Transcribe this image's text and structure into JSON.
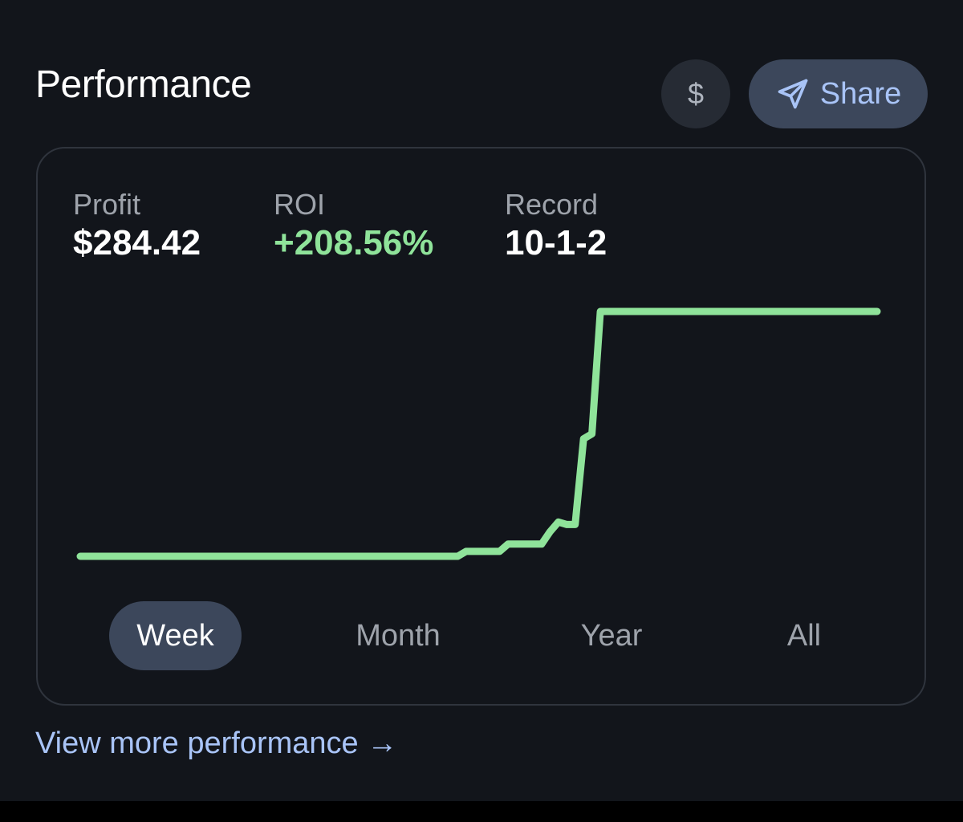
{
  "header": {
    "title": "Performance",
    "currency_symbol": "$",
    "share_label": "Share"
  },
  "stats": {
    "profit": {
      "label": "Profit",
      "value": "$284.42"
    },
    "roi": {
      "label": "ROI",
      "value": "+208.56%"
    },
    "record": {
      "label": "Record",
      "value": "10-1-2"
    }
  },
  "range_tabs": [
    {
      "label": "Week",
      "active": true
    },
    {
      "label": "Month",
      "active": false
    },
    {
      "label": "Year",
      "active": false
    },
    {
      "label": "All",
      "active": false
    }
  ],
  "footer": {
    "view_more_label": "View more performance →"
  },
  "colors": {
    "accent": "#8fe39a",
    "link": "#a9c4f7",
    "panel": "#12151b",
    "active_tab": "#3c475b"
  },
  "chart_data": {
    "type": "line",
    "series": [
      {
        "values": [
          0,
          0,
          0,
          0,
          0,
          0,
          0,
          0,
          0,
          0,
          0,
          0,
          0,
          0,
          0,
          0,
          0,
          0,
          0,
          0,
          0,
          0,
          0,
          0,
          0,
          0,
          0,
          0,
          0,
          0,
          0,
          0,
          0,
          0,
          0,
          0,
          0,
          0,
          0,
          0,
          0,
          0,
          0,
          0,
          0,
          0,
          0.02,
          0.02,
          0.02,
          0.02,
          0.02,
          0.05,
          0.05,
          0.05,
          0.05,
          0.05,
          0.1,
          0.14,
          0.13,
          0.13,
          0.48,
          0.5,
          1.0,
          1.0,
          1.0,
          1.0,
          1.0,
          1.0,
          1.0,
          1.0,
          1.0,
          1.0,
          1.0,
          1.0,
          1.0,
          1.0,
          1.0,
          1.0,
          1.0,
          1.0,
          1.0,
          1.0,
          1.0,
          1.0,
          1.0,
          1.0,
          1.0,
          1.0,
          1.0,
          1.0,
          1.0,
          1.0,
          1.0,
          1.0,
          1.0,
          1.0
        ]
      }
    ],
    "grid": false,
    "legend": "none",
    "ylim": [
      0,
      1
    ]
  }
}
